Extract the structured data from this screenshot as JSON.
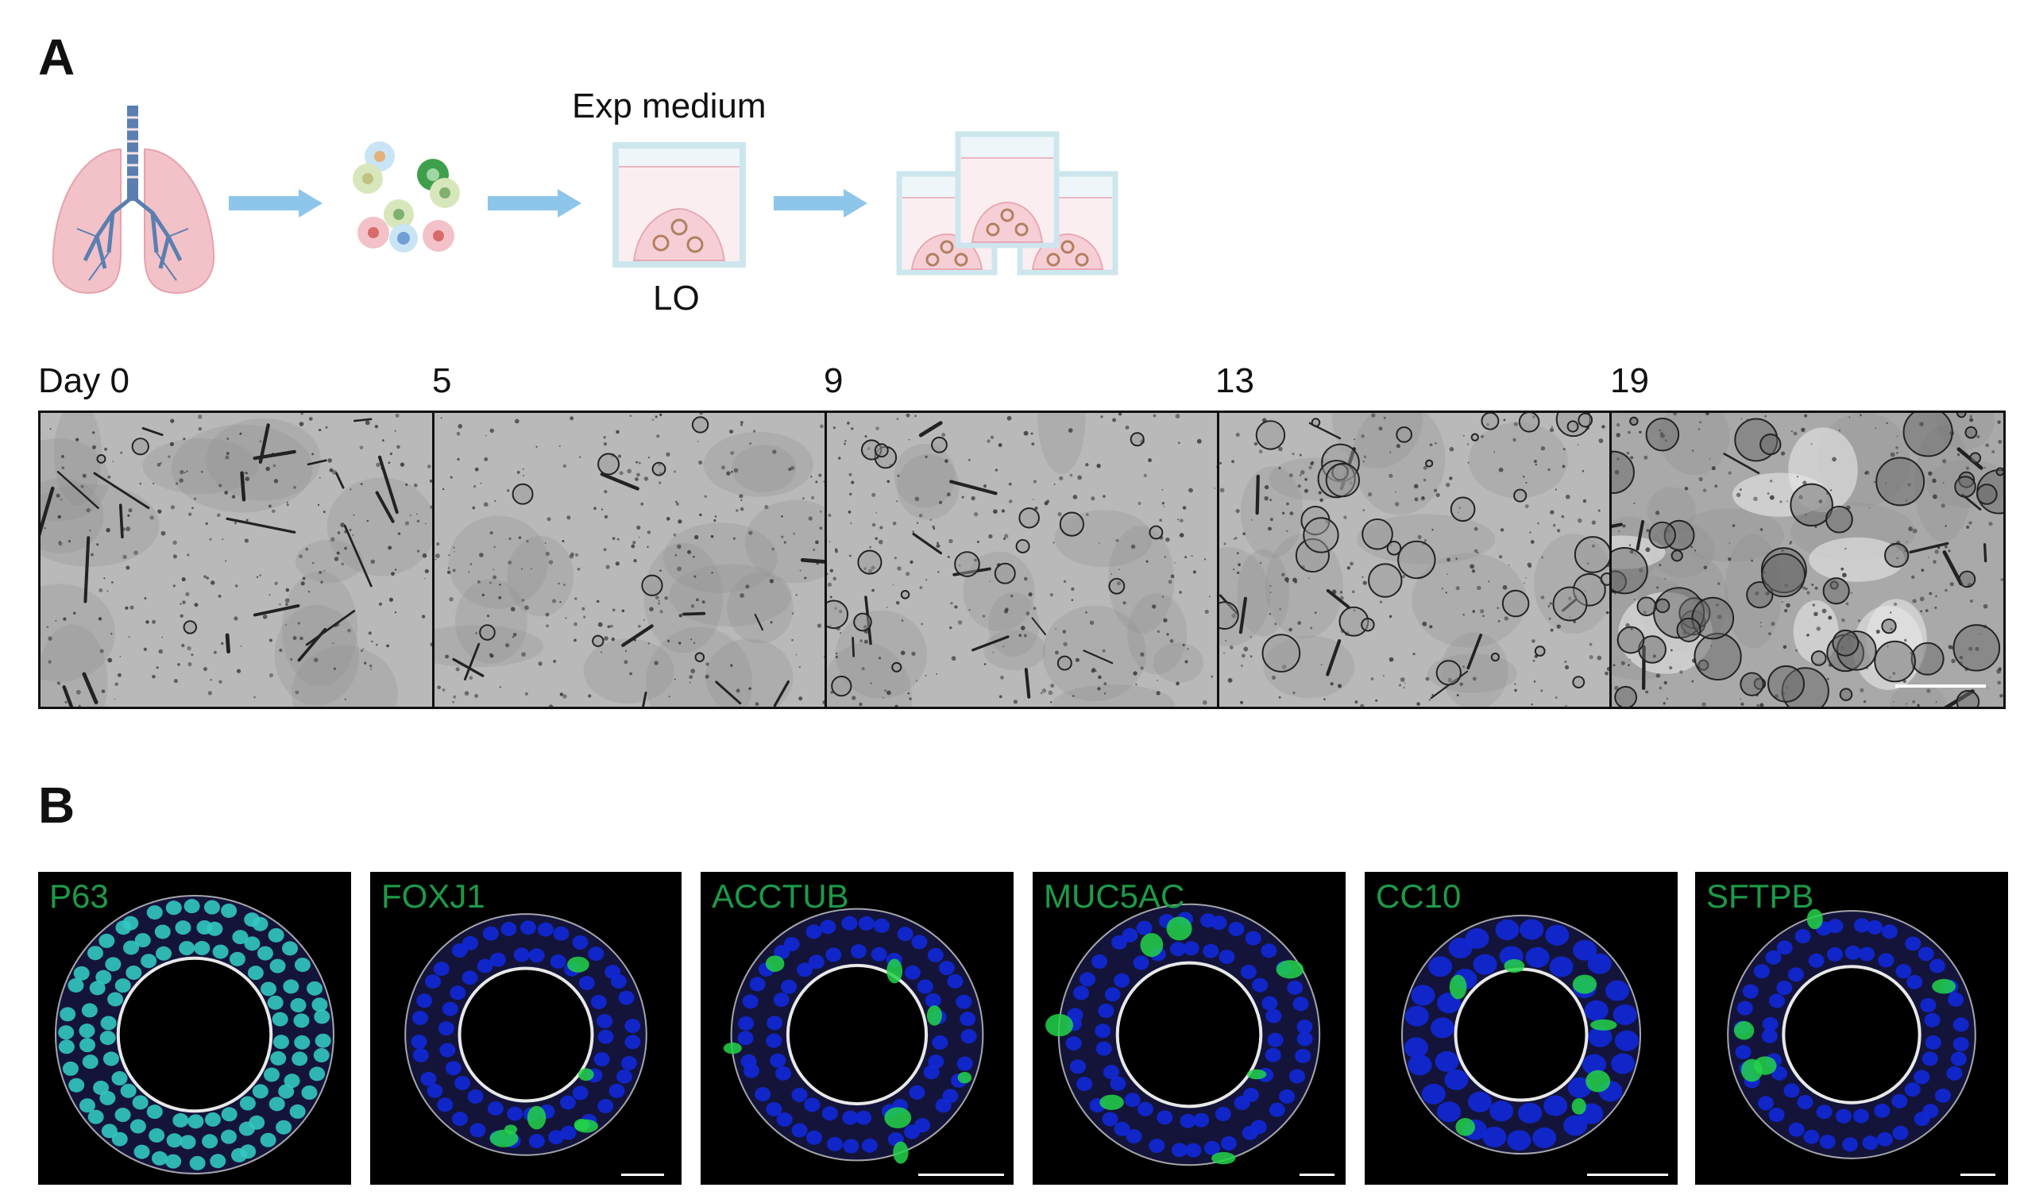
{
  "panels": {
    "a": "A",
    "b": "B"
  },
  "schematic": {
    "medium_label": "Exp medium",
    "organoid_label": "LO",
    "colors": {
      "lung": "#f2c2c8",
      "trachea": "#5a7fb0",
      "arrow": "#8ec5ea",
      "well": "#cde6ee",
      "medium": "#f9e1e6"
    }
  },
  "timecourse": {
    "days": [
      "Day 0",
      "5",
      "9",
      "13",
      "19"
    ],
    "organoid_growth_level": [
      0.05,
      0.15,
      0.35,
      0.65,
      1.0
    ]
  },
  "stains": {
    "markers": [
      "P63",
      "FOXJ1",
      "ACCTUB",
      "MUC5AC",
      "CC10",
      "SFTPB"
    ],
    "colors": {
      "label": "#1d9a48",
      "nuclei": "#1028d8",
      "marker": "#22d44a",
      "membrane": "#e8e8e8",
      "p63_nuclei": "#32c8c0"
    }
  }
}
